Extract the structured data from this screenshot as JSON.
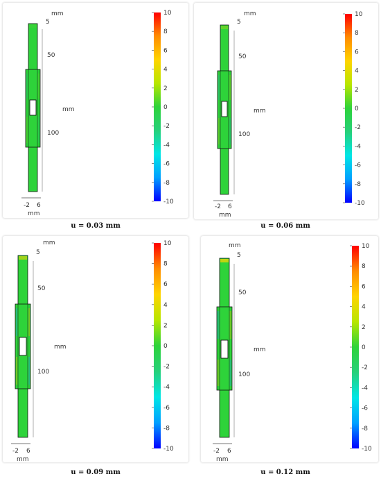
{
  "panels": [
    {
      "caption": "u = 0.03 mm",
      "intensity": 0.35
    },
    {
      "caption": "u = 0.06 mm",
      "intensity": 0.55
    },
    {
      "caption": "u = 0.09 mm",
      "intensity": 0.85
    },
    {
      "caption": "u = 0.12 mm",
      "intensity": 1.0
    }
  ],
  "labels": {
    "unit": "mm",
    "dim_top": "5",
    "dim_mid": "50",
    "dim_low": "100",
    "x_left": "-2",
    "x_right": "6",
    "x_unit": "mm"
  },
  "colorbar": {
    "ticks": [
      "10",
      "8",
      "6",
      "4",
      "2",
      "0",
      "-2",
      "-4",
      "-6",
      "-8",
      "-10"
    ],
    "colors": [
      "#0000ff",
      "#00a0ff",
      "#00e6e6",
      "#26d07a",
      "#2ed33a",
      "#b8e600",
      "#ffd400",
      "#ff8c00",
      "#ff0000"
    ]
  }
}
